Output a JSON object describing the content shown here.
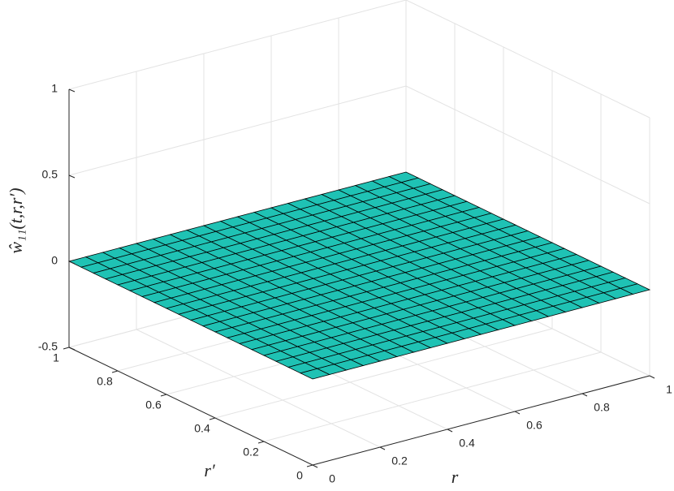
{
  "chart_data": {
    "type": "surface",
    "x": [
      0,
      0.05,
      0.1,
      0.15,
      0.2,
      0.25,
      0.3,
      0.35,
      0.4,
      0.45,
      0.5,
      0.55,
      0.6,
      0.65,
      0.7,
      0.75,
      0.8,
      0.85,
      0.9,
      0.95,
      1
    ],
    "y": [
      0,
      0.05,
      0.1,
      0.15,
      0.2,
      0.25,
      0.3,
      0.35,
      0.4,
      0.45,
      0.5,
      0.55,
      0.6,
      0.65,
      0.7,
      0.75,
      0.8,
      0.85,
      0.9,
      0.95,
      1
    ],
    "z": [
      [
        0,
        0,
        0,
        0,
        0,
        0,
        0,
        0,
        0,
        0,
        0,
        0,
        0,
        0,
        0,
        0,
        0,
        0,
        0,
        0,
        0
      ],
      [
        0,
        0,
        0,
        0,
        0,
        0,
        0,
        0,
        0,
        0,
        0,
        0,
        0,
        0,
        0,
        0,
        0,
        0,
        0,
        0,
        0
      ],
      [
        0,
        0,
        0,
        0,
        0,
        0,
        0,
        0,
        0,
        0,
        0,
        0,
        0,
        0,
        0,
        0,
        0,
        0,
        0,
        0,
        0
      ],
      [
        0,
        0,
        0,
        0,
        0,
        0,
        0,
        0,
        0,
        0,
        0,
        0,
        0,
        0,
        0,
        0,
        0,
        0,
        0,
        0,
        0
      ],
      [
        0,
        0,
        0,
        0,
        0,
        0,
        0,
        0,
        0,
        0,
        0,
        0,
        0,
        0,
        0,
        0,
        0,
        0,
        0,
        0,
        0
      ],
      [
        0,
        0,
        0,
        0,
        0,
        0,
        0,
        0,
        0,
        0,
        0,
        0,
        0,
        0,
        0,
        0,
        0,
        0,
        0,
        0,
        0
      ],
      [
        0,
        0,
        0,
        0,
        0,
        0,
        0,
        0,
        0,
        0,
        0,
        0,
        0,
        0,
        0,
        0,
        0,
        0,
        0,
        0,
        0
      ],
      [
        0,
        0,
        0,
        0,
        0,
        0,
        0,
        0,
        0,
        0,
        0,
        0,
        0,
        0,
        0,
        0,
        0,
        0,
        0,
        0,
        0
      ],
      [
        0,
        0,
        0,
        0,
        0,
        0,
        0,
        0,
        0,
        0,
        0,
        0,
        0,
        0,
        0,
        0,
        0,
        0,
        0,
        0,
        0
      ],
      [
        0,
        0,
        0,
        0,
        0,
        0,
        0,
        0,
        0,
        0,
        0,
        0,
        0,
        0,
        0,
        0,
        0,
        0,
        0,
        0,
        0
      ],
      [
        0,
        0,
        0,
        0,
        0,
        0,
        0,
        0,
        0,
        0,
        0,
        0,
        0,
        0,
        0,
        0,
        0,
        0,
        0,
        0,
        0
      ],
      [
        0,
        0,
        0,
        0,
        0,
        0,
        0,
        0,
        0,
        0,
        0,
        0,
        0,
        0,
        0,
        0,
        0,
        0,
        0,
        0,
        0
      ],
      [
        0,
        0,
        0,
        0,
        0,
        0,
        0,
        0,
        0,
        0,
        0,
        0,
        0,
        0,
        0,
        0,
        0,
        0,
        0,
        0,
        0
      ],
      [
        0,
        0,
        0,
        0,
        0,
        0,
        0,
        0,
        0,
        0,
        0,
        0,
        0,
        0,
        0,
        0,
        0,
        0,
        0,
        0,
        0
      ],
      [
        0,
        0,
        0,
        0,
        0,
        0,
        0,
        0,
        0,
        0,
        0,
        0,
        0,
        0,
        0,
        0,
        0,
        0,
        0,
        0,
        0
      ],
      [
        0,
        0,
        0,
        0,
        0,
        0,
        0,
        0,
        0,
        0,
        0,
        0,
        0,
        0,
        0,
        0,
        0,
        0,
        0,
        0,
        0
      ],
      [
        0,
        0,
        0,
        0,
        0,
        0,
        0,
        0,
        0,
        0,
        0,
        0,
        0,
        0,
        0,
        0,
        0,
        0,
        0,
        0,
        0
      ],
      [
        0,
        0,
        0,
        0,
        0,
        0,
        0,
        0,
        0,
        0,
        0,
        0,
        0,
        0,
        0,
        0,
        0,
        0,
        0,
        0,
        0
      ],
      [
        0,
        0,
        0,
        0,
        0,
        0,
        0,
        0,
        0,
        0,
        0,
        0,
        0,
        0,
        0,
        0,
        0,
        0,
        0,
        0,
        0
      ],
      [
        0,
        0,
        0,
        0,
        0,
        0,
        0,
        0,
        0,
        0,
        0,
        0,
        0,
        0,
        0,
        0,
        0,
        0,
        0,
        0,
        0
      ],
      [
        0,
        0,
        0,
        0,
        0,
        0,
        0,
        0,
        0,
        0,
        0,
        0,
        0,
        0,
        0,
        0,
        0,
        0,
        0,
        0,
        0
      ]
    ],
    "color": "#1fc2b4",
    "xlabel": "r",
    "ylabel": "r′",
    "zlabel": "ŵ₁₁(t,r,r′)",
    "xlim": [
      0,
      1
    ],
    "ylim": [
      0,
      1
    ],
    "zlim": [
      -0.5,
      1
    ],
    "xticks": [
      0,
      0.2,
      0.4,
      0.6,
      0.8,
      1
    ],
    "yticks": [
      0,
      0.2,
      0.4,
      0.6,
      0.8,
      1
    ],
    "zticks": [
      -0.5,
      0,
      0.5,
      1
    ],
    "grid": true
  }
}
